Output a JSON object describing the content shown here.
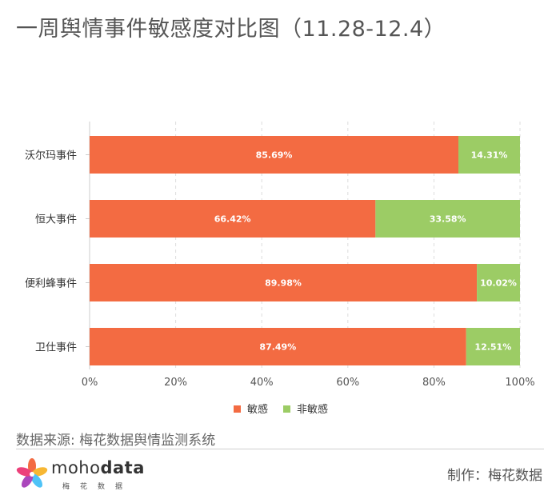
{
  "title": "一周舆情事件敏感度对比图（11.28-12.4）",
  "source": "数据来源: 梅花数据舆情监测系统",
  "credit": "制作：梅花数据",
  "logo": {
    "word_light": "moho",
    "word_bold": "data",
    "subtitle": "梅花数据"
  },
  "colors": {
    "sensitive": "#f36b42",
    "non_sensitive": "#9ccc65",
    "axis": "#cccccc",
    "text": "#555555"
  },
  "chart_data": {
    "type": "bar",
    "orientation": "horizontal",
    "stacked": true,
    "categories": [
      "沃尔玛事件",
      "恒大事件",
      "便利蜂事件",
      "卫仕事件"
    ],
    "series": [
      {
        "name": "敏感",
        "values": [
          85.69,
          66.42,
          89.98,
          87.49
        ],
        "labels": [
          "85.69%",
          "66.42%",
          "89.98%",
          "87.49%"
        ]
      },
      {
        "name": "非敏感",
        "values": [
          14.31,
          33.58,
          10.02,
          12.51
        ],
        "labels": [
          "14.31%",
          "33.58%",
          "10.02%",
          "12.51%"
        ]
      }
    ],
    "xlim": [
      0,
      100
    ],
    "xticks": [
      "0%",
      "20%",
      "40%",
      "60%",
      "80%",
      "100%"
    ],
    "grid": "vertical dashed",
    "legend": "bottom-center"
  }
}
